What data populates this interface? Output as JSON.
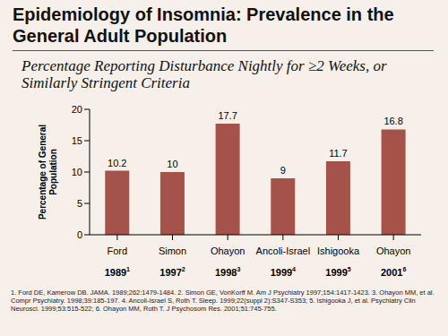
{
  "chart_data": {
    "type": "bar",
    "title": "Epidemiology of Insomnia: Prevalence in the General Adult Population",
    "subtitle": "Percentage Reporting Disturbance Nightly for ≥2 Weeks, or Similarly Stringent Criteria",
    "y_label": "Percentage of General Population",
    "categories": [
      "Ford",
      "Simon",
      "Ohayon",
      "Ancoli-Israel",
      "Ishigooka",
      "Ohayon"
    ],
    "years": [
      1989,
      1997,
      1998,
      1999,
      1999,
      2001
    ],
    "footnote_refs": [
      "1",
      "2",
      "3",
      "4",
      "5",
      "6"
    ],
    "values": [
      10.2,
      10,
      17.7,
      9,
      11.7,
      16.8
    ],
    "color": "#a5524b",
    "ylim": [
      0,
      20
    ],
    "yticks": [
      0,
      5,
      10,
      15,
      20
    ],
    "grid": false,
    "data_labels": true,
    "footnote": "1. Ford DE, Kamerow DB. JAMA. 1989;262:1479-1484. 2. Simon GE, VonKorff M. Am J Psychiatry 1997;154:1417-1423. 3. Ohayon MM, et al. Compr Psychiatry. 1998;39:185-197. 4. Ancoli-Israel S, Roth T. Sleep. 1999;22(suppl 2):S347-S353; 5. Ishigooka J, et al. Psychiatry Clin Neurosci. 1999;53:515-522; 6. Ohayon MM, Roth T. J Psychosom Res. 2001;51:745-755."
  }
}
